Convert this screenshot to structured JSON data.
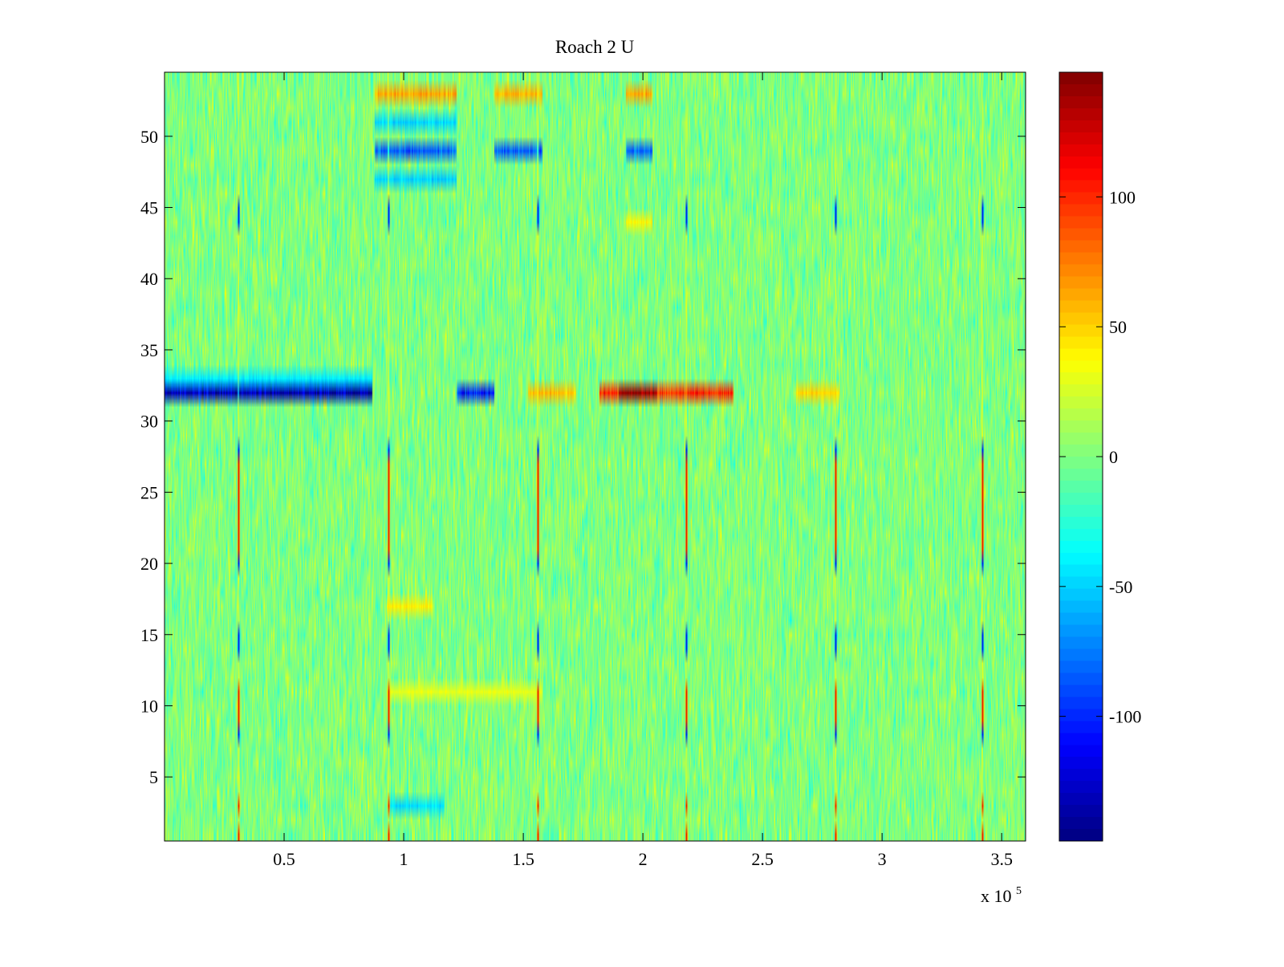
{
  "chart_data": {
    "type": "heatmap",
    "title": "Roach 2 U",
    "xlabel": "",
    "ylabel": "",
    "xlim": [
      0,
      360000
    ],
    "ylim": [
      0.5,
      54.5
    ],
    "x_ticks": [
      {
        "value": 50000,
        "label": "0.5"
      },
      {
        "value": 100000,
        "label": "1"
      },
      {
        "value": 150000,
        "label": "1.5"
      },
      {
        "value": 200000,
        "label": "2"
      },
      {
        "value": 250000,
        "label": "2.5"
      },
      {
        "value": 300000,
        "label": "3"
      },
      {
        "value": 350000,
        "label": "3.5"
      }
    ],
    "x_multiplier": {
      "base": "x 10",
      "exponent": "5"
    },
    "y_ticks": [
      {
        "value": 5,
        "label": "5"
      },
      {
        "value": 10,
        "label": "10"
      },
      {
        "value": 15,
        "label": "15"
      },
      {
        "value": 20,
        "label": "20"
      },
      {
        "value": 25,
        "label": "25"
      },
      {
        "value": 30,
        "label": "30"
      },
      {
        "value": 35,
        "label": "35"
      },
      {
        "value": 40,
        "label": "40"
      },
      {
        "value": 45,
        "label": "45"
      },
      {
        "value": 50,
        "label": "50"
      }
    ],
    "rows": 54,
    "color_range": [
      -148,
      148
    ],
    "colormap": "jet",
    "colorbar_ticks": [
      {
        "value": 100,
        "label": "100"
      },
      {
        "value": 50,
        "label": "50"
      },
      {
        "value": 0,
        "label": "0"
      },
      {
        "value": -50,
        "label": "-50"
      },
      {
        "value": -100,
        "label": "-100"
      }
    ],
    "features": [
      {
        "kind": "row-band",
        "row": 32,
        "x_start": 0,
        "x_end": 87000,
        "value": -135
      },
      {
        "kind": "row-band",
        "row": 33,
        "x_start": 0,
        "x_end": 87000,
        "value": -42
      },
      {
        "kind": "row-band",
        "row": 32,
        "x_start": 122000,
        "x_end": 138000,
        "value": -105
      },
      {
        "kind": "row-band",
        "row": 32,
        "x_start": 152000,
        "x_end": 172000,
        "value": 55
      },
      {
        "kind": "row-band",
        "row": 32,
        "x_start": 182000,
        "x_end": 238000,
        "value": 98
      },
      {
        "kind": "row-band",
        "row": 32,
        "x_start": 190000,
        "x_end": 206000,
        "value": 145
      },
      {
        "kind": "row-band",
        "row": 32,
        "x_start": 264000,
        "x_end": 282000,
        "value": 48
      },
      {
        "kind": "row-band",
        "row": 53,
        "x_start": 88000,
        "x_end": 122000,
        "value": 62
      },
      {
        "kind": "row-band",
        "row": 53,
        "x_start": 138000,
        "x_end": 158000,
        "value": 58
      },
      {
        "kind": "row-band",
        "row": 53,
        "x_start": 193000,
        "x_end": 204000,
        "value": 60
      },
      {
        "kind": "row-band",
        "row": 49,
        "x_start": 88000,
        "x_end": 122000,
        "value": -85
      },
      {
        "kind": "row-band",
        "row": 49,
        "x_start": 138000,
        "x_end": 158000,
        "value": -85
      },
      {
        "kind": "row-band",
        "row": 49,
        "x_start": 193000,
        "x_end": 204000,
        "value": -80
      },
      {
        "kind": "row-band",
        "row": 47,
        "x_start": 88000,
        "x_end": 122000,
        "value": -50
      },
      {
        "kind": "row-band",
        "row": 51,
        "x_start": 88000,
        "x_end": 122000,
        "value": -48
      },
      {
        "kind": "row-band",
        "row": 44,
        "x_start": 193000,
        "x_end": 204000,
        "value": 38
      },
      {
        "kind": "row-band",
        "row": 17,
        "x_start": 93000,
        "x_end": 112000,
        "value": 40
      },
      {
        "kind": "row-band",
        "row": 11,
        "x_start": 93000,
        "x_end": 158000,
        "value": 30
      },
      {
        "kind": "row-band",
        "row": 3,
        "x_start": 94000,
        "x_end": 117000,
        "value": -45
      },
      {
        "kind": "column-spikes",
        "x": [
          31000,
          93500,
          156000,
          218000,
          280500,
          342000
        ],
        "rows_high": [
          1,
          3,
          9,
          10,
          11,
          21,
          22,
          23,
          24,
          25,
          26,
          27
        ],
        "rows_low": [
          8,
          14,
          15,
          20,
          28,
          44,
          45
        ],
        "high_value": 125,
        "low_value": -125
      }
    ]
  }
}
